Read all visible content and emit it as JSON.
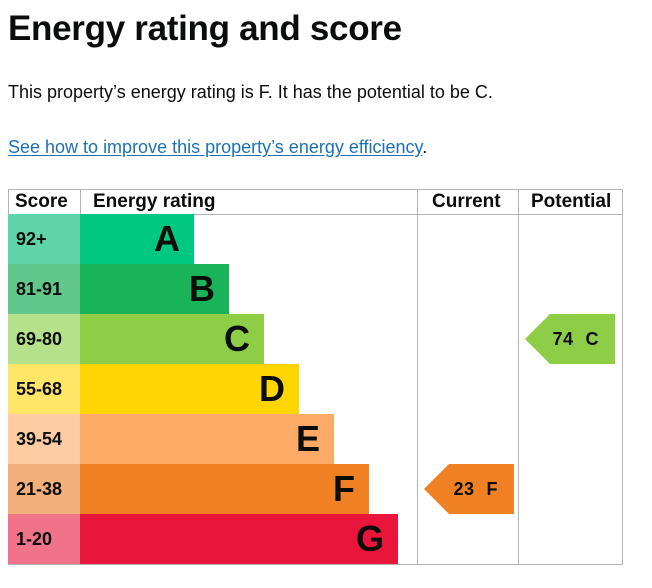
{
  "page": {
    "title": "Energy rating and score",
    "summary": "This property’s energy rating is F. It has the potential to be C.",
    "improve_link": "See how to improve this property’s energy efficiency",
    "improve_link_suffix": "."
  },
  "chart_data": {
    "type": "table",
    "title": "Energy rating and score",
    "headers": {
      "score": "Score",
      "rating": "Energy rating",
      "current": "Current",
      "potential": "Potential"
    },
    "bands": [
      {
        "letter": "A",
        "range": "92+",
        "band_color": "#00c781",
        "score_color": "#5fd3a9",
        "relative_length": 0.36
      },
      {
        "letter": "B",
        "range": "81-91",
        "band_color": "#19b459",
        "score_color": "#61c78b",
        "relative_length": 0.47
      },
      {
        "letter": "C",
        "range": "69-80",
        "band_color": "#8dce46",
        "score_color": "#b5e18a",
        "relative_length": 0.58
      },
      {
        "letter": "D",
        "range": "55-68",
        "band_color": "#ffd500",
        "score_color": "#ffe566",
        "relative_length": 0.69
      },
      {
        "letter": "E",
        "range": "39-54",
        "band_color": "#fcaa65",
        "score_color": "#fdcca3",
        "relative_length": 0.8
      },
      {
        "letter": "F",
        "range": "21-38",
        "band_color": "#ef8023",
        "score_color": "#f4b07a",
        "relative_length": 0.91
      },
      {
        "letter": "G",
        "range": "1-20",
        "band_color": "#e9153b",
        "score_color": "#f0738a",
        "relative_length": 1.0
      }
    ],
    "current": {
      "score": 23,
      "letter": "F",
      "label": "23",
      "band_label": "F",
      "color": "#ef8023"
    },
    "potential": {
      "score": 74,
      "letter": "C",
      "label": "74",
      "band_label": "C",
      "color": "#8dce46"
    }
  }
}
